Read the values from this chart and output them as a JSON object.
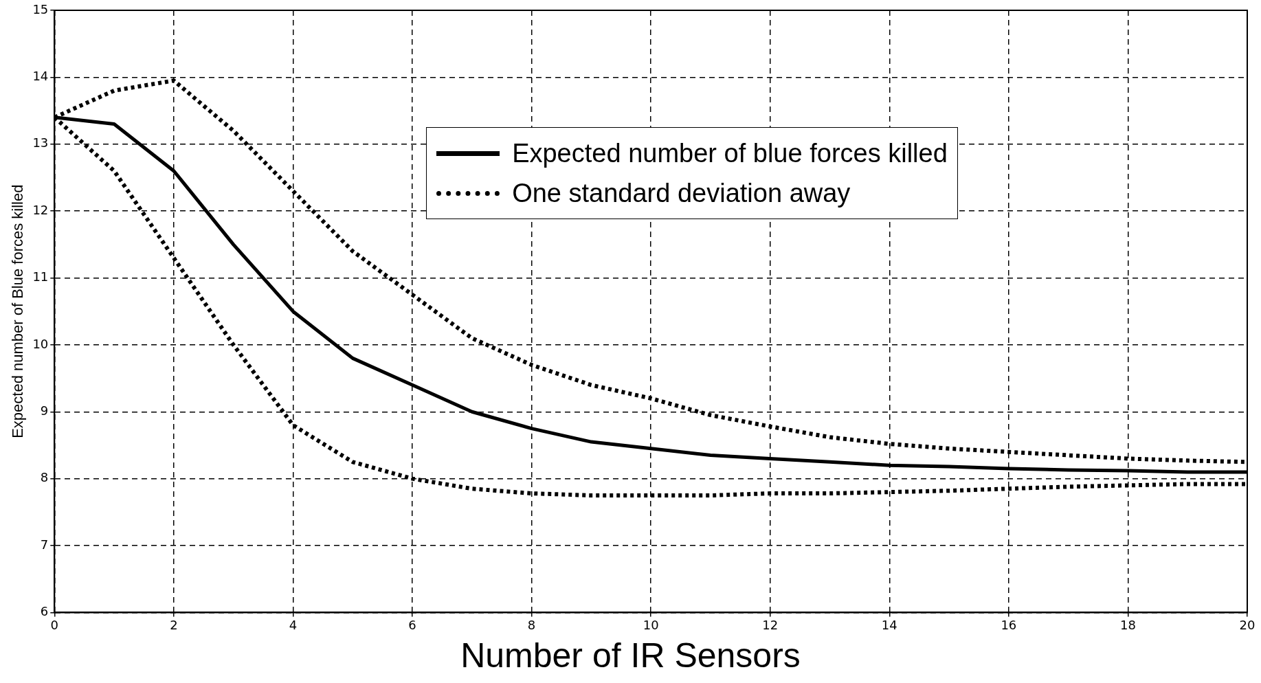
{
  "chart_data": {
    "type": "line",
    "xlabel": "Number of IR Sensors",
    "ylabel": "Expected number of Blue forces killed",
    "x": [
      0,
      1,
      2,
      3,
      4,
      5,
      6,
      7,
      8,
      9,
      10,
      11,
      12,
      13,
      14,
      15,
      16,
      17,
      18,
      19,
      20
    ],
    "xlim": [
      0,
      20
    ],
    "xticks": [
      0,
      2,
      4,
      6,
      8,
      10,
      12,
      14,
      16,
      18,
      20
    ],
    "ylim": [
      6,
      15
    ],
    "yticks": [
      6,
      7,
      8,
      9,
      10,
      11,
      12,
      13,
      14,
      15
    ],
    "grid": true,
    "legend": "top",
    "marker": "none",
    "series": [
      {
        "name": "Expected number of blue forces killed",
        "color": "#000000",
        "line_style": "solid",
        "values": [
          13.4,
          13.3,
          12.6,
          11.5,
          10.5,
          9.8,
          9.4,
          9.0,
          8.75,
          8.55,
          8.45,
          8.35,
          8.3,
          8.25,
          8.2,
          8.18,
          8.15,
          8.13,
          8.12,
          8.1,
          8.1
        ]
      },
      {
        "name": "One standard deviation away",
        "color": "#000000",
        "line_style": "dotted",
        "values": [
          13.4,
          13.8,
          13.95,
          13.2,
          12.3,
          11.4,
          10.75,
          10.1,
          9.7,
          9.4,
          9.2,
          8.95,
          8.78,
          8.62,
          8.52,
          8.45,
          8.4,
          8.35,
          8.3,
          8.27,
          8.25
        ]
      },
      {
        "color": "#000000",
        "line_style": "dotted",
        "values": [
          13.4,
          12.6,
          11.3,
          10.0,
          8.8,
          8.25,
          8.0,
          7.85,
          7.78,
          7.75,
          7.75,
          7.75,
          7.78,
          7.78,
          7.8,
          7.82,
          7.85,
          7.88,
          7.9,
          7.92,
          7.92
        ]
      }
    ]
  }
}
